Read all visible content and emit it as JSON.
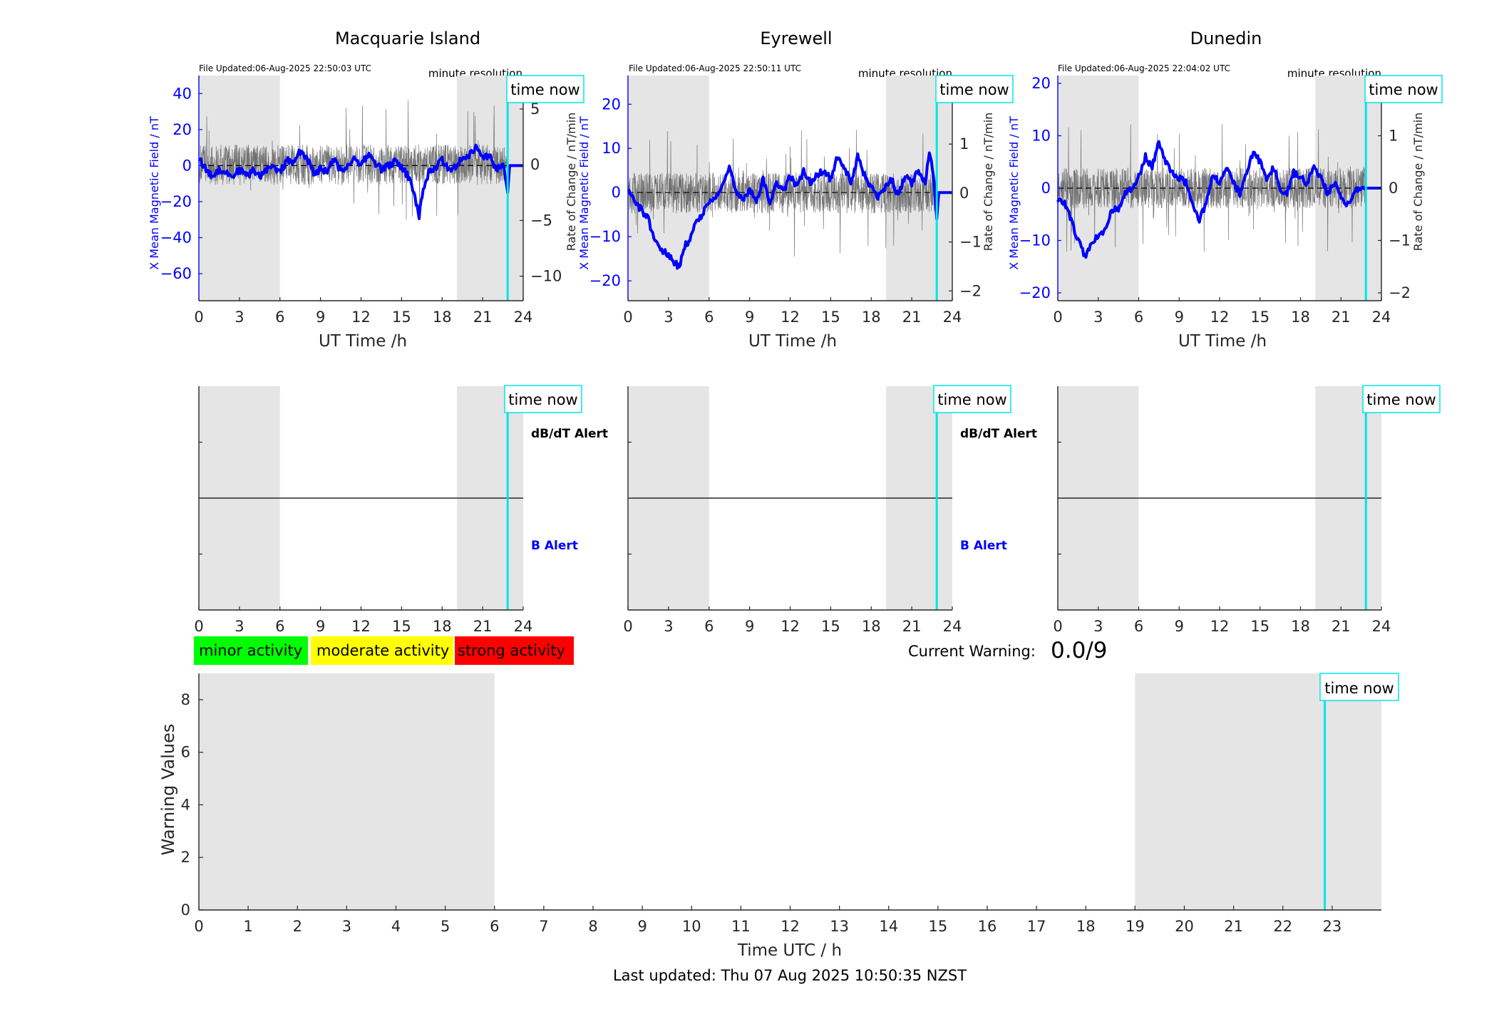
{
  "panels": [
    {
      "title": "Macquarie Island",
      "file_updated": "File Updated:06-Aug-2025 22:50:03 UTC",
      "resolution": "minute resolution",
      "time_now_label": "time now",
      "left_ylabel": "X Mean Magnetic Field / nT",
      "right_ylabel": "Rate of Change / nT/min",
      "xlabel": "UT Time /h",
      "xlim": [
        0,
        24
      ],
      "xticks": [
        0,
        3,
        6,
        9,
        12,
        15,
        18,
        21,
        24
      ],
      "left_ylim": [
        -75,
        50
      ],
      "left_yticks": [
        -60,
        -40,
        -20,
        0,
        20,
        40
      ],
      "right_ylim": [
        -12.2,
        8
      ],
      "right_yticks": [
        -10,
        -5,
        0,
        5
      ],
      "dark_shading_h": [
        [
          0,
          6
        ],
        [
          19.1,
          24
        ]
      ],
      "time_now_h": 22.85,
      "b_field_trace": [
        [
          0,
          5
        ],
        [
          0.3,
          0
        ],
        [
          0.6,
          -3
        ],
        [
          1,
          -6
        ],
        [
          1.5,
          -2
        ],
        [
          2,
          -4
        ],
        [
          2.5,
          -6
        ],
        [
          3,
          -2
        ],
        [
          3.5,
          -6
        ],
        [
          4,
          -3
        ],
        [
          4.5,
          -6
        ],
        [
          5,
          -2
        ],
        [
          5.5,
          -1
        ],
        [
          6,
          -4
        ],
        [
          6.5,
          3
        ],
        [
          7,
          1
        ],
        [
          7.5,
          8
        ],
        [
          8,
          4
        ],
        [
          8.5,
          -4
        ],
        [
          9,
          -2
        ],
        [
          9.5,
          -3
        ],
        [
          10,
          3
        ],
        [
          10.5,
          -3
        ],
        [
          11,
          0
        ],
        [
          11.5,
          4
        ],
        [
          12,
          1
        ],
        [
          12.5,
          6
        ],
        [
          13,
          2
        ],
        [
          13.5,
          -2
        ],
        [
          14,
          0
        ],
        [
          14.5,
          2
        ],
        [
          15,
          -1
        ],
        [
          15.5,
          -6
        ],
        [
          16,
          -18
        ],
        [
          16.3,
          -28
        ],
        [
          16.6,
          -13
        ],
        [
          17,
          -4
        ],
        [
          17.5,
          -1
        ],
        [
          18,
          3
        ],
        [
          18.5,
          -2
        ],
        [
          19,
          0
        ],
        [
          19.5,
          4
        ],
        [
          20,
          6
        ],
        [
          20.5,
          10
        ],
        [
          21,
          4
        ],
        [
          21.5,
          6
        ],
        [
          22,
          -3
        ],
        [
          22.5,
          1
        ],
        [
          22.85,
          -15
        ],
        [
          23,
          0
        ],
        [
          24,
          0
        ]
      ],
      "rate_spread": 1.0
    },
    {
      "title": "Eyrewell",
      "file_updated": "File Updated:06-Aug-2025 22:50:11 UTC",
      "resolution": "minute resolution",
      "time_now_label": "time now",
      "left_ylabel": "X Mean Magnetic Field / nT",
      "right_ylabel": "Rate of Change / nT/min",
      "xlabel": "UT Time /h",
      "xlim": [
        0,
        24
      ],
      "xticks": [
        0,
        3,
        6,
        9,
        12,
        15,
        18,
        21,
        24
      ],
      "left_ylim": [
        -24.5,
        26.5
      ],
      "left_yticks": [
        -20,
        -10,
        0,
        10,
        20
      ],
      "right_ylim": [
        -2.2,
        2.4
      ],
      "right_yticks": [
        -2,
        -1,
        0,
        1,
        2
      ],
      "dark_shading_h": [
        [
          0,
          6
        ],
        [
          19.1,
          24
        ]
      ],
      "time_now_h": 22.85,
      "b_field_trace": [
        [
          0,
          1
        ],
        [
          0.5,
          -2
        ],
        [
          1,
          -4
        ],
        [
          1.5,
          -6
        ],
        [
          2,
          -11
        ],
        [
          2.5,
          -13
        ],
        [
          3,
          -14
        ],
        [
          3.5,
          -16
        ],
        [
          3.8,
          -17
        ],
        [
          4.2,
          -12
        ],
        [
          4.5,
          -11
        ],
        [
          5,
          -7
        ],
        [
          5.5,
          -5
        ],
        [
          6,
          -2
        ],
        [
          6.5,
          -1
        ],
        [
          7,
          2
        ],
        [
          7.5,
          6
        ],
        [
          8,
          0
        ],
        [
          8.5,
          -2
        ],
        [
          9,
          1
        ],
        [
          9.5,
          -2
        ],
        [
          10,
          3
        ],
        [
          10.5,
          -2
        ],
        [
          11,
          2
        ],
        [
          11.5,
          0
        ],
        [
          12,
          4
        ],
        [
          12.5,
          1
        ],
        [
          13,
          5
        ],
        [
          13.5,
          2
        ],
        [
          14,
          4
        ],
        [
          14.5,
          5
        ],
        [
          15,
          3
        ],
        [
          15.5,
          8
        ],
        [
          16,
          6
        ],
        [
          16.5,
          2
        ],
        [
          17,
          8
        ],
        [
          17.5,
          4
        ],
        [
          18,
          1
        ],
        [
          18.5,
          -1
        ],
        [
          19,
          1
        ],
        [
          19.5,
          3
        ],
        [
          20,
          -1
        ],
        [
          20.5,
          4
        ],
        [
          21,
          2
        ],
        [
          21.5,
          5
        ],
        [
          22,
          2
        ],
        [
          22.3,
          9
        ],
        [
          22.6,
          4
        ],
        [
          22.85,
          -6
        ],
        [
          23,
          0
        ],
        [
          24,
          0
        ]
      ],
      "rate_spread": 1.0
    },
    {
      "title": "Dunedin",
      "file_updated": "File Updated:06-Aug-2025 22:04:02 UTC",
      "resolution": "minute resolution",
      "time_now_label": "time now",
      "left_ylabel": "X Mean Magnetic Field / nT",
      "right_ylabel": "Rate of Change / nT/min",
      "xlabel": "UT Time /h",
      "xlim": [
        0,
        24
      ],
      "xticks": [
        0,
        3,
        6,
        9,
        12,
        15,
        18,
        21,
        24
      ],
      "left_ylim": [
        -21.5,
        21.5
      ],
      "left_yticks": [
        -20,
        -10,
        0,
        10,
        20
      ],
      "right_ylim": [
        -2.15,
        2.15
      ],
      "right_yticks": [
        -2,
        -1,
        0,
        1,
        2
      ],
      "dark_shading_h": [
        [
          0,
          6
        ],
        [
          19.1,
          24
        ]
      ],
      "time_now_h": 22.85,
      "b_field_trace": [
        [
          0,
          -2
        ],
        [
          0.5,
          -3
        ],
        [
          1,
          -6
        ],
        [
          1.5,
          -10
        ],
        [
          2,
          -13
        ],
        [
          2.5,
          -11
        ],
        [
          3,
          -9
        ],
        [
          3.5,
          -8
        ],
        [
          4,
          -4
        ],
        [
          4.5,
          -4
        ],
        [
          5,
          -1
        ],
        [
          5.5,
          0
        ],
        [
          6,
          2
        ],
        [
          6.5,
          6
        ],
        [
          7,
          4
        ],
        [
          7.5,
          9
        ],
        [
          8,
          5
        ],
        [
          8.5,
          3
        ],
        [
          9,
          2
        ],
        [
          9.5,
          1
        ],
        [
          10,
          -3
        ],
        [
          10.5,
          -6
        ],
        [
          11,
          -3
        ],
        [
          11.5,
          3
        ],
        [
          12,
          1
        ],
        [
          12.5,
          4
        ],
        [
          13,
          1
        ],
        [
          13.5,
          -1
        ],
        [
          14,
          3
        ],
        [
          14.5,
          7
        ],
        [
          15,
          5
        ],
        [
          15.5,
          2
        ],
        [
          16,
          4
        ],
        [
          16.5,
          0
        ],
        [
          17,
          -1
        ],
        [
          17.5,
          3
        ],
        [
          18,
          2
        ],
        [
          18.5,
          1
        ],
        [
          19,
          4
        ],
        [
          19.5,
          2
        ],
        [
          20,
          -1
        ],
        [
          20.5,
          1
        ],
        [
          21,
          -2
        ],
        [
          21.5,
          -3
        ],
        [
          22,
          -1
        ],
        [
          22.15,
          -1
        ],
        [
          22.15,
          0
        ],
        [
          24,
          0
        ]
      ],
      "rate_spread": 1.0
    }
  ],
  "alert_panels": [
    {
      "dbdt_label": "dB/dT Alert",
      "b_label": "B Alert",
      "time_now_label": "time now",
      "xticks": [
        0,
        3,
        6,
        9,
        12,
        15,
        18,
        21,
        24
      ],
      "shading_h": [
        [
          0,
          6
        ],
        [
          19.1,
          24
        ]
      ],
      "time_now_h": 22.85
    },
    {
      "dbdt_label": "dB/dT Alert",
      "b_label": "B Alert",
      "time_now_label": "time now",
      "xticks": [
        0,
        3,
        6,
        9,
        12,
        15,
        18,
        21,
        24
      ],
      "shading_h": [
        [
          0,
          6
        ],
        [
          19.1,
          24
        ]
      ],
      "time_now_h": 22.85
    },
    {
      "dbdt_label": "",
      "b_label": "",
      "time_now_label": "time now",
      "xticks": [
        0,
        3,
        6,
        9,
        12,
        15,
        18,
        21,
        24
      ],
      "shading_h": [
        [
          0,
          6
        ],
        [
          19.1,
          24
        ]
      ],
      "time_now_h": 22.85
    }
  ],
  "legend": [
    {
      "label": "minor activity",
      "color": "#00ff00"
    },
    {
      "label": "moderate activity",
      "color": "#ffff00"
    },
    {
      "label": "strong activity",
      "color": "#ff0000"
    }
  ],
  "current_warning": {
    "label": "Current Warning:",
    "value": "0.0/9"
  },
  "warning_chart": {
    "ylabel": "Warning Values",
    "xlabel": "Time UTC / h",
    "xlim": [
      0,
      24
    ],
    "xticks": [
      0,
      1,
      2,
      3,
      4,
      5,
      6,
      7,
      8,
      9,
      10,
      11,
      12,
      13,
      14,
      15,
      16,
      17,
      18,
      19,
      20,
      21,
      22,
      23
    ],
    "ylim": [
      0,
      9
    ],
    "yticks": [
      0,
      2,
      4,
      6,
      8
    ],
    "shading_h": [
      [
        0,
        6
      ],
      [
        19,
        24
      ]
    ],
    "time_now_h": 22.85,
    "time_now_label": "time now"
  },
  "last_updated": "Last updated: Thu 07 Aug 2025 10:50:35 NZST",
  "colors": {
    "b_trace": "#0000ff",
    "rate_trace": "#4a4a4a",
    "time_now": "#00e5e5",
    "shade": "#e5e5e5",
    "label_blue": "#0000ff"
  },
  "chart_data": [
    {
      "type": "line",
      "title": "Macquarie Island",
      "xlabel": "UT Time /h",
      "ylabel": "X Mean Magnetic Field / nT",
      "y2label": "Rate of Change / nT/min",
      "xlim": [
        0,
        24
      ],
      "ylim": [
        -75,
        50
      ],
      "y2lim": [
        -12.2,
        8
      ],
      "series": [
        {
          "name": "",
          "x": [
            0,
            3,
            6,
            9,
            12,
            15,
            16.3,
            18,
            21,
            22.85
          ],
          "values": [
            5,
            -2,
            -4,
            -2,
            1,
            -1,
            -28,
            3,
            4,
            -15
          ]
        }
      ]
    },
    {
      "type": "line",
      "title": "Eyrewell",
      "xlabel": "UT Time /h",
      "ylabel": "X Mean Magnetic Field / nT",
      "y2label": "Rate of Change / nT/min",
      "xlim": [
        0,
        24
      ],
      "ylim": [
        -24.5,
        26.5
      ],
      "y2lim": [
        -2.2,
        2.4
      ],
      "series": [
        {
          "name": "",
          "x": [
            0,
            3.8,
            6,
            9,
            12,
            15,
            17,
            21,
            22.3,
            22.85
          ],
          "values": [
            1,
            -17,
            -2,
            1,
            4,
            3,
            8,
            2,
            9,
            -6
          ]
        }
      ]
    },
    {
      "type": "line",
      "title": "Dunedin",
      "xlabel": "UT Time /h",
      "ylabel": "X Mean Magnetic Field / nT",
      "y2label": "Rate of Change / nT/min",
      "xlim": [
        0,
        24
      ],
      "ylim": [
        -21.5,
        21.5
      ],
      "y2lim": [
        -2.15,
        2.15
      ],
      "series": [
        {
          "name": "",
          "x": [
            0,
            2,
            6,
            7.5,
            10.5,
            14.5,
            18,
            21.5,
            22.15
          ],
          "values": [
            -2,
            -13,
            2,
            9,
            -6,
            7,
            2,
            -3,
            -1
          ]
        }
      ]
    },
    {
      "type": "bar",
      "title": "",
      "xlabel": "Time UTC / h",
      "ylabel": "Warning Values",
      "xlim": [
        0,
        24
      ],
      "ylim": [
        0,
        9
      ],
      "categories": [],
      "values": []
    }
  ]
}
